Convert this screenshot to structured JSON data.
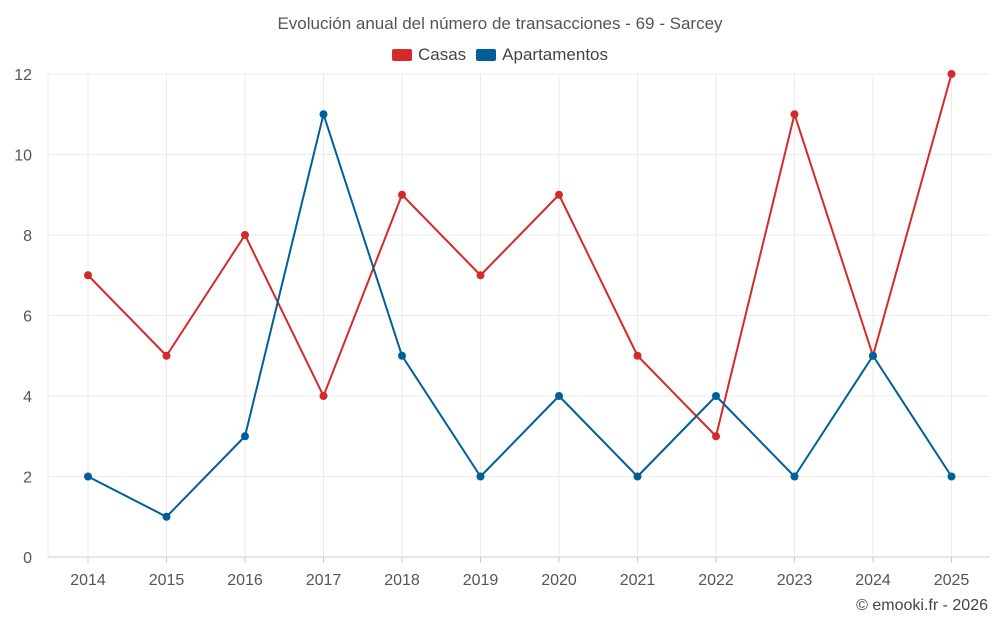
{
  "chart_data": {
    "type": "line",
    "title": "Evolución anual del número de transacciones - 69 - Sarcey",
    "categories": [
      "2014",
      "2015",
      "2016",
      "2017",
      "2018",
      "2019",
      "2020",
      "2021",
      "2022",
      "2023",
      "2024",
      "2025"
    ],
    "series": [
      {
        "name": "Casas",
        "color": "#d42a2a",
        "values": [
          7,
          5,
          8,
          4,
          9,
          7,
          9,
          5,
          3,
          11,
          5,
          12
        ]
      },
      {
        "name": "Apartamentos",
        "color": "#005f99",
        "values": [
          2,
          1,
          3,
          11,
          5,
          2,
          4,
          2,
          4,
          2,
          5,
          2
        ]
      }
    ],
    "ylim": [
      0,
      12
    ],
    "yticks": [
      0,
      2,
      4,
      6,
      8,
      10,
      12
    ],
    "xlabel": "",
    "ylabel": "",
    "grid": true,
    "legend_position": "top-center"
  },
  "copyright": "© emooki.fr - 2026"
}
